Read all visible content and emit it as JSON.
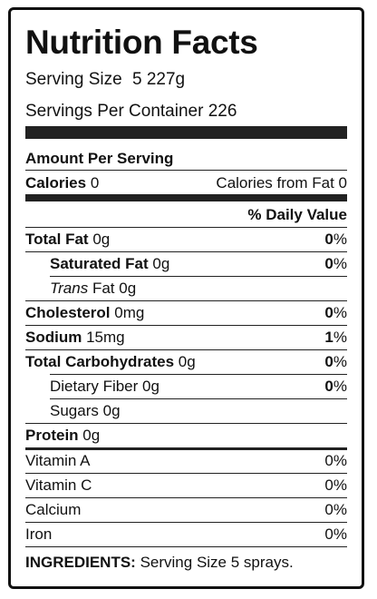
{
  "title": "Nutrition Facts",
  "serving_size": {
    "label": "Serving Size",
    "qty": "5",
    "amount": "227g"
  },
  "servings_per_container": "Servings Per Container 226",
  "amount_per_serving": "Amount Per Serving",
  "calories": {
    "label": "Calories",
    "value": "0",
    "from_fat_label": "Calories from Fat",
    "from_fat_value": "0"
  },
  "daily_value_header": "% Daily Value",
  "nutrients": [
    {
      "name": "Total Fat",
      "amount": "0g",
      "dv": "0"
    },
    {
      "name": "Saturated Fat",
      "amount": "0g",
      "dv": "0"
    },
    {
      "name_italic": "Trans",
      "name": "Fat",
      "amount": "0g"
    },
    {
      "name": "Cholesterol",
      "amount": "0mg",
      "dv": "0"
    },
    {
      "name": "Sodium",
      "amount": "15mg",
      "dv": "1"
    },
    {
      "name": "Total Carbohydrates",
      "amount": "0g",
      "dv": "0"
    },
    {
      "name": "Dietary Fiber",
      "amount": "0g",
      "dv": "0"
    },
    {
      "name": "Sugars",
      "amount": "0g"
    },
    {
      "name": "Protein",
      "amount": "0g"
    }
  ],
  "vitamins": [
    {
      "name": "Vitamin A",
      "dv": "0%"
    },
    {
      "name": "Vitamin C",
      "dv": "0%"
    },
    {
      "name": "Calcium",
      "dv": "0%"
    },
    {
      "name": "Iron",
      "dv": "0%"
    }
  ],
  "ingredients": {
    "label": "INGREDIENTS:",
    "text": "Serving Size 5 sprays."
  },
  "percent_sign": "%"
}
